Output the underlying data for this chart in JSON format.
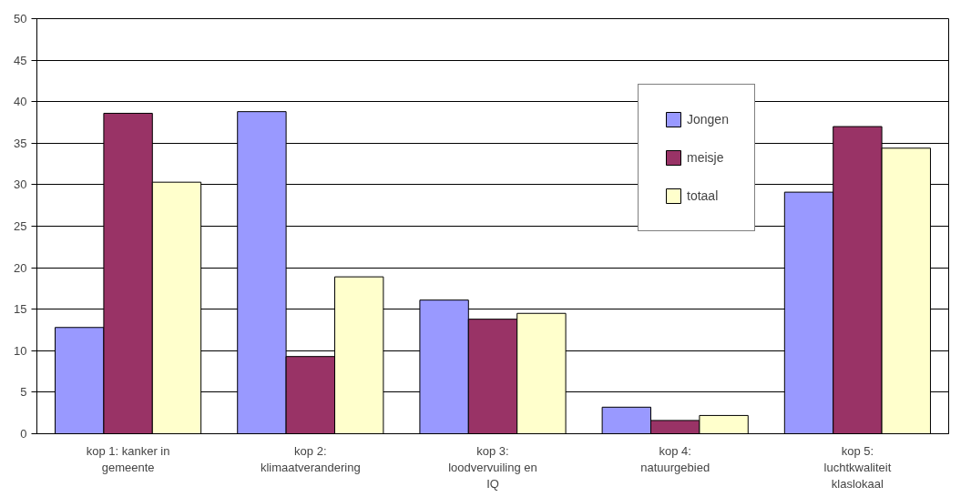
{
  "chart_data": {
    "type": "bar",
    "categories": [
      "kop 1: kanker in gemeente",
      "kop 2: klimaatverandering",
      "kop 3: loodvervuiling en IQ",
      "kop 4: natuurgebied",
      "kop 5: luchtkwaliteit klaslokaal"
    ],
    "series": [
      {
        "name": "Jongen",
        "color": "#9999ff",
        "values": [
          12.8,
          38.8,
          16.1,
          3.2,
          29.1
        ]
      },
      {
        "name": "meisje",
        "color": "#993366",
        "values": [
          38.6,
          9.3,
          13.8,
          1.6,
          37.0
        ]
      },
      {
        "name": "totaal",
        "color": "#ffffcc",
        "values": [
          30.3,
          18.9,
          14.5,
          2.2,
          34.4
        ]
      }
    ],
    "ylim": [
      0,
      50
    ],
    "yticks": [
      0,
      5,
      10,
      15,
      20,
      25,
      30,
      35,
      40,
      45,
      50
    ],
    "grid": "y",
    "legend": "top right"
  }
}
